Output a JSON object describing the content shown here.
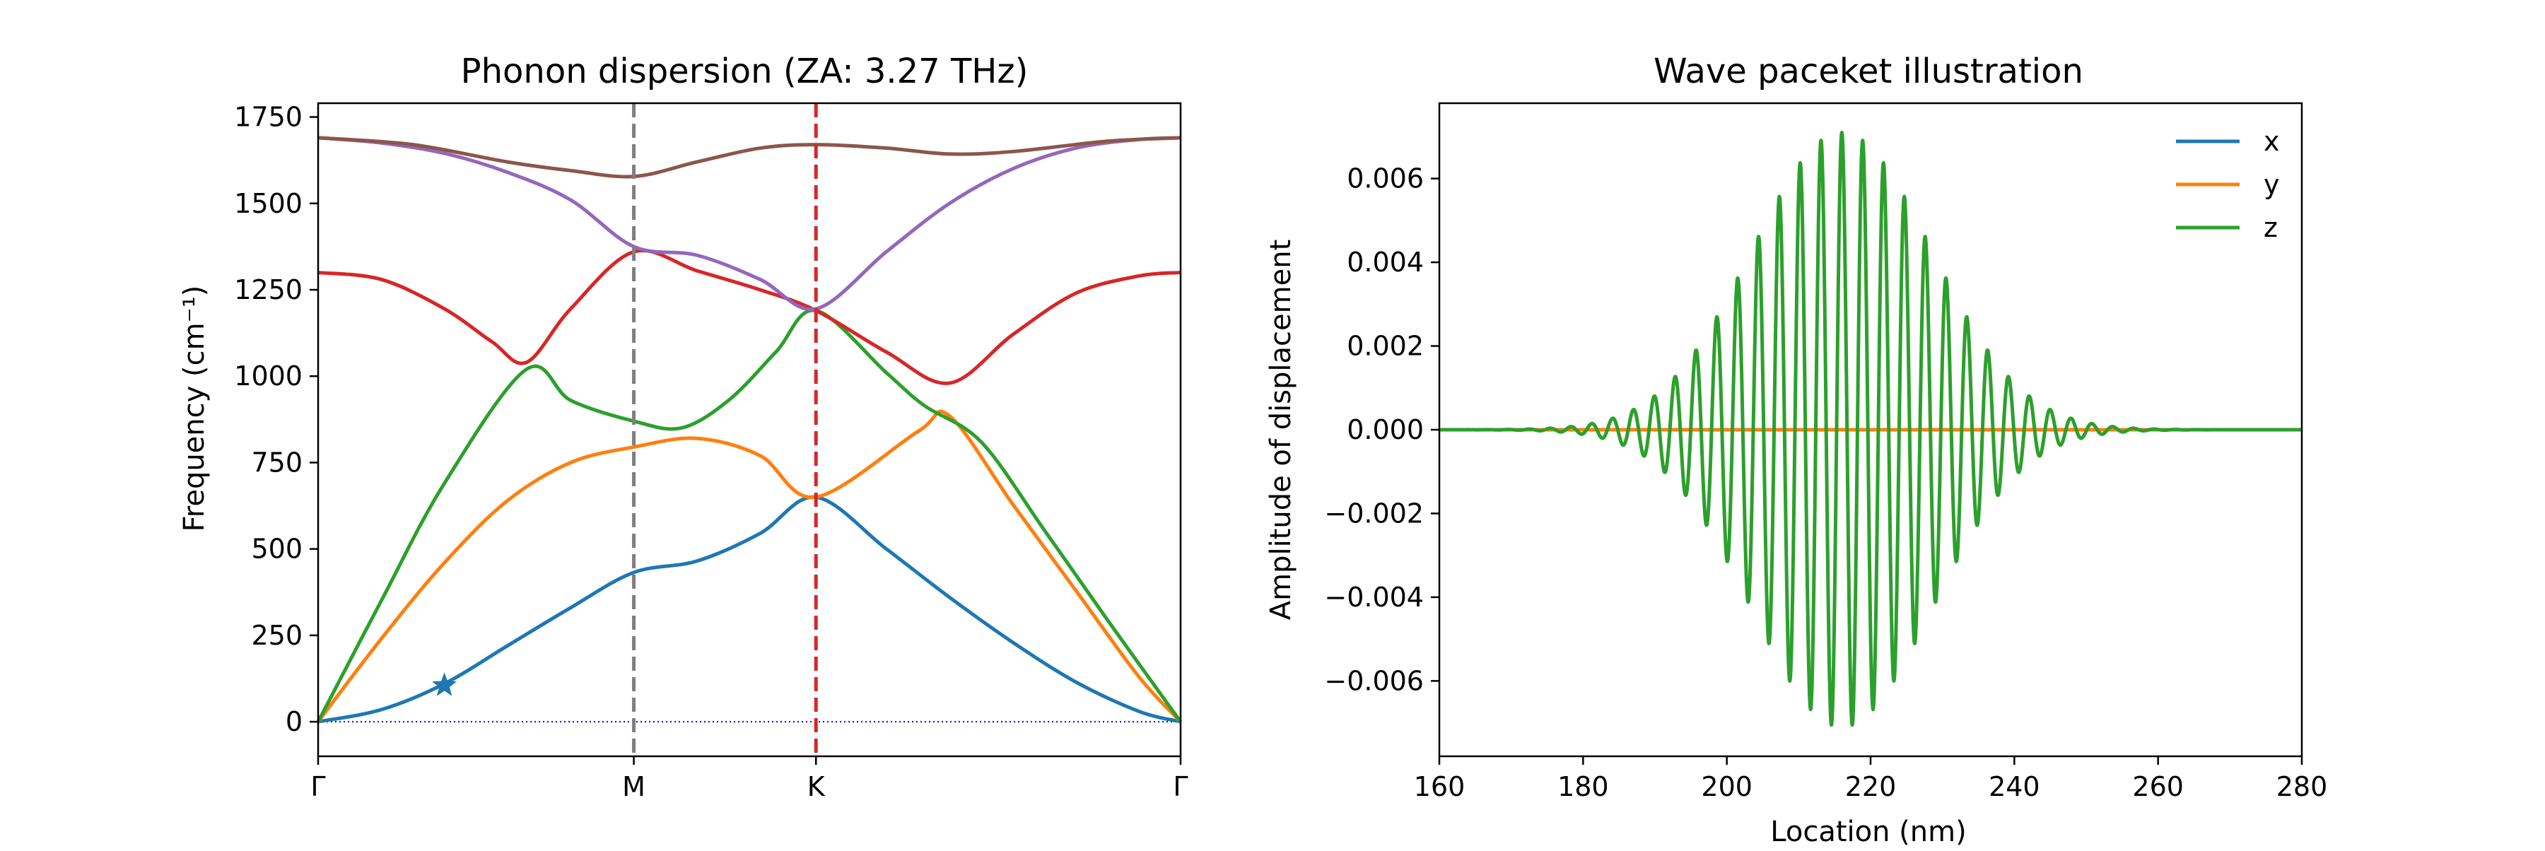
{
  "chart_data": [
    {
      "type": "line",
      "title": "Phonon dispersion (ZA: 3.27 THz)",
      "ylabel": "Frequency (cm⁻¹)",
      "xlabel": "",
      "x_ticks": [
        "Γ",
        "M",
        "K",
        "Γ"
      ],
      "x_tick_pos": [
        0,
        1,
        1.577,
        2.732
      ],
      "xlim": [
        0,
        2.732
      ],
      "ylim": [
        -100,
        1790
      ],
      "yticks": [
        0,
        250,
        500,
        750,
        1000,
        1250,
        1500,
        1750
      ],
      "grid": false,
      "legend": "none",
      "markers": [
        {
          "shape": "star",
          "x": 0.4,
          "y": 105,
          "color": "#1f77b4"
        }
      ],
      "vlines": [
        {
          "x": 1,
          "color": "#7f7f7f",
          "style": "dashed"
        },
        {
          "x": 1.577,
          "color": "#d62728",
          "style": "dashed"
        }
      ],
      "hlines": [
        {
          "y": 0,
          "color": "#0000ff",
          "style": "dotted"
        }
      ],
      "series": [
        {
          "color": "#1f77b4",
          "x": [
            0,
            0.2,
            0.4,
            0.6,
            0.8,
            1,
            1.2,
            1.4,
            1.577,
            1.8,
            2.0,
            2.2,
            2.4,
            2.6,
            2.732
          ],
          "y": [
            0,
            35,
            110,
            220,
            330,
            432,
            465,
            545,
            650,
            500,
            360,
            230,
            115,
            30,
            0
          ]
        },
        {
          "color": "#ff7f0e",
          "x": [
            0,
            0.2,
            0.4,
            0.6,
            0.8,
            1,
            1.2,
            1.4,
            1.577,
            1.9,
            2.0,
            2.2,
            2.4,
            2.6,
            2.732
          ],
          "y": [
            0,
            240,
            460,
            640,
            750,
            795,
            820,
            770,
            650,
            840,
            885,
            630,
            380,
            130,
            0
          ]
        },
        {
          "color": "#2ca02c",
          "x": [
            0,
            0.2,
            0.4,
            0.66,
            0.8,
            1,
            1.15,
            1.3,
            1.45,
            1.577,
            1.8,
            1.92,
            2.1,
            2.3,
            2.5,
            2.732
          ],
          "y": [
            0,
            350,
            690,
            1020,
            930,
            870,
            850,
            930,
            1070,
            1190,
            1010,
            915,
            810,
            555,
            295,
            0
          ]
        },
        {
          "color": "#d62728",
          "x": [
            0,
            0.2,
            0.4,
            0.55,
            0.66,
            0.8,
            1,
            1.2,
            1.4,
            1.577,
            1.8,
            2.0,
            2.2,
            2.4,
            2.6,
            2.732
          ],
          "y": [
            1300,
            1280,
            1195,
            1100,
            1040,
            1195,
            1360,
            1305,
            1250,
            1190,
            1070,
            980,
            1120,
            1240,
            1290,
            1300
          ]
        },
        {
          "color": "#9467bd",
          "x": [
            0,
            0.2,
            0.4,
            0.6,
            0.8,
            1,
            1.2,
            1.4,
            1.577,
            1.8,
            2.0,
            2.2,
            2.4,
            2.6,
            2.732
          ],
          "y": [
            1690,
            1675,
            1645,
            1590,
            1510,
            1375,
            1350,
            1280,
            1195,
            1360,
            1500,
            1600,
            1660,
            1685,
            1690
          ]
        },
        {
          "color": "#8c564b",
          "x": [
            0,
            0.3,
            0.6,
            0.8,
            1,
            1.2,
            1.4,
            1.577,
            1.8,
            2.0,
            2.2,
            2.5,
            2.732
          ],
          "y": [
            1690,
            1670,
            1620,
            1595,
            1578,
            1620,
            1660,
            1670,
            1660,
            1643,
            1650,
            1680,
            1690
          ]
        }
      ]
    },
    {
      "type": "line",
      "title": "Wave paceket illustration",
      "xlabel": "Location (nm)",
      "ylabel": "Amplitude of displacement",
      "xlim": [
        160,
        280
      ],
      "ylim": [
        -0.0078,
        0.0078
      ],
      "xticks": [
        160,
        180,
        200,
        220,
        240,
        260,
        280
      ],
      "yticks": [
        -0.006,
        -0.004,
        -0.002,
        0.0,
        0.002,
        0.004,
        0.006
      ],
      "ytick_labels": [
        "−0.006",
        "−0.004",
        "−0.002",
        "0.000",
        "0.002",
        "0.004",
        "0.006"
      ],
      "grid": false,
      "legend": "top-right",
      "legend_entries": [
        {
          "name": "x",
          "color": "#1f77b4"
        },
        {
          "name": "y",
          "color": "#ff7f0e"
        },
        {
          "name": "z",
          "color": "#2ca02c"
        }
      ],
      "series": [
        {
          "name": "x",
          "color": "#1f77b4",
          "x": [
            160,
            280
          ],
          "y": [
            0,
            0
          ]
        },
        {
          "name": "y",
          "color": "#ff7f0e",
          "x": [
            160,
            280
          ],
          "y": [
            0,
            0
          ]
        },
        {
          "name": "z",
          "color": "#2ca02c",
          "envelope": {
            "center": 216,
            "sigma": 12.5,
            "amplitude": 0.0071,
            "wavelength": 2.9,
            "phase_peak_at": 216
          }
        }
      ]
    }
  ]
}
